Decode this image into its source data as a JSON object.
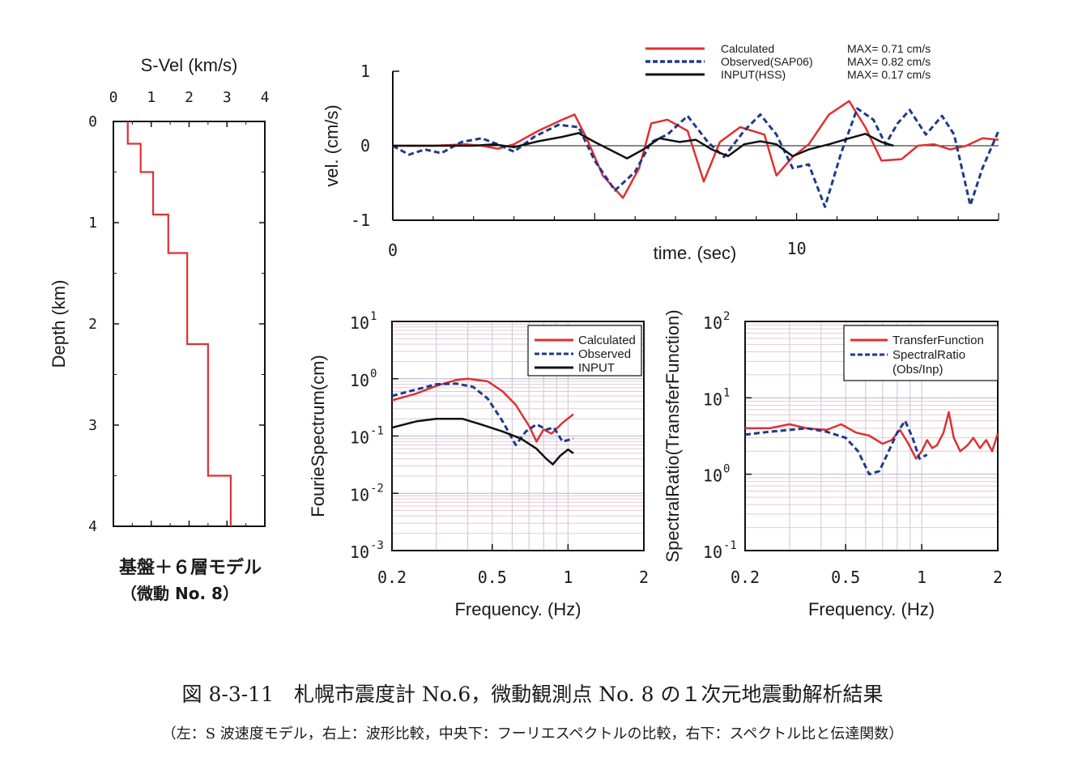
{
  "chart_data": [
    {
      "id": "velocity-profile",
      "type": "line",
      "title": "S-Vel (km/s)",
      "xlabel": "",
      "ylabel": "Depth (km)",
      "xlim": [
        0,
        4
      ],
      "ylim": [
        4,
        0
      ],
      "x_ticks": [
        "0",
        "1",
        "2",
        "3",
        "4"
      ],
      "y_ticks": [
        "0",
        "1",
        "2",
        "3",
        "4"
      ],
      "model_label": "基盤＋６層モデル",
      "model_sublabel": "（微動 No. 8）",
      "series": [
        {
          "color": "#e03030",
          "points": [
            [
              0.38,
              0
            ],
            [
              0.38,
              0.22
            ],
            [
              0.72,
              0.22
            ],
            [
              0.72,
              0.5
            ],
            [
              1.05,
              0.5
            ],
            [
              1.05,
              0.92
            ],
            [
              1.45,
              0.92
            ],
            [
              1.45,
              1.3
            ],
            [
              1.95,
              1.3
            ],
            [
              1.95,
              2.2
            ],
            [
              2.5,
              2.2
            ],
            [
              2.5,
              3.5
            ],
            [
              3.1,
              3.5
            ],
            [
              3.1,
              4.0
            ]
          ]
        }
      ]
    },
    {
      "id": "waveform",
      "type": "line",
      "xlabel": "time. (sec)",
      "ylabel": "vel. (cm/s)",
      "xlim": [
        0,
        15
      ],
      "ylim": [
        -1,
        1
      ],
      "x_ticks": [
        "0",
        "10"
      ],
      "y_ticks": [
        "1",
        "0",
        "-1"
      ],
      "legend": "top-right",
      "series": [
        {
          "name": "Calculated",
          "max_label": "MAX= 0.71 cm/s",
          "color": "#e03030",
          "style": "solid",
          "points": [
            [
              0,
              0
            ],
            [
              1,
              0
            ],
            [
              1.8,
              0.02
            ],
            [
              2.2,
              0
            ],
            [
              2.6,
              -0.04
            ],
            [
              3,
              0.02
            ],
            [
              3.6,
              0.2
            ],
            [
              4.2,
              0.35
            ],
            [
              4.5,
              0.42
            ],
            [
              4.8,
              0.1
            ],
            [
              5.2,
              -0.4
            ],
            [
              5.7,
              -0.7
            ],
            [
              6.1,
              -0.3
            ],
            [
              6.4,
              0.3
            ],
            [
              6.8,
              0.35
            ],
            [
              7.3,
              0.2
            ],
            [
              7.7,
              -0.48
            ],
            [
              8.1,
              0.05
            ],
            [
              8.6,
              0.25
            ],
            [
              9.2,
              0.15
            ],
            [
              9.5,
              -0.4
            ],
            [
              9.9,
              -0.15
            ],
            [
              10.3,
              0.02
            ],
            [
              10.8,
              0.42
            ],
            [
              11.3,
              0.6
            ],
            [
              11.7,
              0.25
            ],
            [
              12.1,
              -0.2
            ],
            [
              12.6,
              -0.18
            ],
            [
              13,
              0
            ],
            [
              13.4,
              0.02
            ],
            [
              13.8,
              -0.05
            ],
            [
              14.2,
              0
            ],
            [
              14.6,
              0.1
            ],
            [
              15,
              0.08
            ]
          ]
        },
        {
          "name": "Observed(SAP06)",
          "max_label": "MAX= 0.82 cm/s",
          "color": "#1e3a8a",
          "style": "dashed",
          "points": [
            [
              0,
              0
            ],
            [
              0.4,
              -0.12
            ],
            [
              0.8,
              -0.05
            ],
            [
              1.2,
              -0.1
            ],
            [
              1.7,
              0.05
            ],
            [
              2.2,
              0.1
            ],
            [
              2.6,
              0.02
            ],
            [
              3,
              -0.08
            ],
            [
              3.5,
              0.12
            ],
            [
              4.1,
              0.28
            ],
            [
              4.6,
              0.25
            ],
            [
              5,
              -0.2
            ],
            [
              5.5,
              -0.6
            ],
            [
              6,
              -0.35
            ],
            [
              6.4,
              0.05
            ],
            [
              6.8,
              0.15
            ],
            [
              7.3,
              0.4
            ],
            [
              7.8,
              0.05
            ],
            [
              8.2,
              -0.15
            ],
            [
              8.7,
              0.2
            ],
            [
              9.1,
              0.42
            ],
            [
              9.5,
              0.15
            ],
            [
              9.9,
              -0.3
            ],
            [
              10.3,
              -0.25
            ],
            [
              10.7,
              -0.82
            ],
            [
              11.1,
              -0.1
            ],
            [
              11.5,
              0.5
            ],
            [
              11.9,
              0.35
            ],
            [
              12.2,
              0.02
            ],
            [
              12.5,
              0.3
            ],
            [
              12.8,
              0.48
            ],
            [
              13.2,
              0.15
            ],
            [
              13.6,
              0.4
            ],
            [
              13.9,
              0.15
            ],
            [
              14.3,
              -0.8
            ],
            [
              14.6,
              -0.3
            ],
            [
              15,
              0.2
            ]
          ]
        },
        {
          "name": "INPUT(HSS)",
          "max_label": "MAX= 0.17 cm/s",
          "color": "#111111",
          "style": "solid",
          "points": [
            [
              0,
              0
            ],
            [
              1,
              0
            ],
            [
              2,
              0
            ],
            [
              2.5,
              0.02
            ],
            [
              3,
              -0.02
            ],
            [
              3.6,
              0.06
            ],
            [
              4.2,
              0.12
            ],
            [
              4.6,
              0.17
            ],
            [
              5,
              0.05
            ],
            [
              5.4,
              -0.06
            ],
            [
              5.8,
              -0.17
            ],
            [
              6.2,
              -0.05
            ],
            [
              6.6,
              0.1
            ],
            [
              7.1,
              0.05
            ],
            [
              7.5,
              0.08
            ],
            [
              7.9,
              -0.05
            ],
            [
              8.3,
              -0.14
            ],
            [
              8.7,
              0.02
            ],
            [
              9.1,
              0.06
            ],
            [
              9.5,
              0.02
            ],
            [
              9.9,
              -0.14
            ],
            [
              10.3,
              -0.05
            ],
            [
              10.8,
              0.02
            ],
            [
              11.3,
              0.1
            ],
            [
              11.7,
              0.16
            ],
            [
              12.1,
              0.05
            ],
            [
              12.4,
              0
            ]
          ]
        }
      ]
    },
    {
      "id": "fourier-spectrum",
      "type": "line",
      "xlabel": "Frequency. (Hz)",
      "ylabel": "FourieSpectrum(cm)",
      "xscale": "log",
      "yscale": "log",
      "xlim": [
        0.2,
        2
      ],
      "ylim": [
        0.001,
        10
      ],
      "x_ticks": [
        "0.2",
        "0.5",
        "1",
        "2"
      ],
      "y_ticks": [
        {
          "base": "10",
          "exp": "1"
        },
        {
          "base": "10",
          "exp": "0"
        },
        {
          "base": "10",
          "exp": "-1"
        },
        {
          "base": "10",
          "exp": "-2"
        },
        {
          "base": "10",
          "exp": "-3"
        }
      ],
      "legend": "top-right",
      "series": [
        {
          "name": "Calculated",
          "color": "#e03030",
          "style": "solid",
          "points": [
            [
              0.2,
              0.42
            ],
            [
              0.25,
              0.55
            ],
            [
              0.3,
              0.75
            ],
            [
              0.36,
              0.95
            ],
            [
              0.4,
              1.0
            ],
            [
              0.48,
              0.9
            ],
            [
              0.55,
              0.6
            ],
            [
              0.62,
              0.35
            ],
            [
              0.7,
              0.15
            ],
            [
              0.75,
              0.08
            ],
            [
              0.8,
              0.13
            ],
            [
              0.86,
              0.11
            ],
            [
              0.95,
              0.17
            ],
            [
              1.05,
              0.24
            ]
          ]
        },
        {
          "name": "Observed",
          "color": "#1e3a8a",
          "style": "dashed",
          "points": [
            [
              0.2,
              0.5
            ],
            [
              0.25,
              0.65
            ],
            [
              0.3,
              0.8
            ],
            [
              0.36,
              0.82
            ],
            [
              0.42,
              0.72
            ],
            [
              0.48,
              0.45
            ],
            [
              0.55,
              0.18
            ],
            [
              0.62,
              0.07
            ],
            [
              0.68,
              0.12
            ],
            [
              0.75,
              0.16
            ],
            [
              0.82,
              0.13
            ],
            [
              0.88,
              0.14
            ],
            [
              0.95,
              0.08
            ],
            [
              1.05,
              0.09
            ]
          ]
        },
        {
          "name": "INPUT",
          "color": "#111111",
          "style": "solid",
          "points": [
            [
              0.2,
              0.14
            ],
            [
              0.25,
              0.18
            ],
            [
              0.3,
              0.2
            ],
            [
              0.38,
              0.2
            ],
            [
              0.45,
              0.16
            ],
            [
              0.55,
              0.12
            ],
            [
              0.65,
              0.09
            ],
            [
              0.75,
              0.06
            ],
            [
              0.82,
              0.04
            ],
            [
              0.87,
              0.032
            ],
            [
              0.93,
              0.045
            ],
            [
              1.0,
              0.058
            ],
            [
              1.05,
              0.05
            ]
          ]
        }
      ]
    },
    {
      "id": "spectral-ratio",
      "type": "line",
      "xlabel": "Frequency. (Hz)",
      "ylabel": "SpectralRatio(TransferFunction)",
      "xscale": "log",
      "yscale": "log",
      "xlim": [
        0.2,
        2
      ],
      "ylim": [
        0.1,
        100
      ],
      "x_ticks": [
        "0.2",
        "0.5",
        "1",
        "2"
      ],
      "y_ticks": [
        {
          "base": "10",
          "exp": "2"
        },
        {
          "base": "10",
          "exp": "1"
        },
        {
          "base": "10",
          "exp": "0"
        },
        {
          "base": "10",
          "exp": "-1"
        }
      ],
      "legend": "top-right",
      "series": [
        {
          "name": "TransferFunction",
          "color": "#e03030",
          "style": "solid",
          "points": [
            [
              0.2,
              4.0
            ],
            [
              0.25,
              4.0
            ],
            [
              0.3,
              4.5
            ],
            [
              0.35,
              4.0
            ],
            [
              0.42,
              3.8
            ],
            [
              0.48,
              4.5
            ],
            [
              0.55,
              3.5
            ],
            [
              0.62,
              3.2
            ],
            [
              0.7,
              2.5
            ],
            [
              0.76,
              2.8
            ],
            [
              0.82,
              3.8
            ],
            [
              0.88,
              2.6
            ],
            [
              0.95,
              1.6
            ],
            [
              1.0,
              2.0
            ],
            [
              1.05,
              2.8
            ],
            [
              1.1,
              2.2
            ],
            [
              1.15,
              2.4
            ],
            [
              1.22,
              3.5
            ],
            [
              1.28,
              6.5
            ],
            [
              1.34,
              3.0
            ],
            [
              1.42,
              2.0
            ],
            [
              1.52,
              2.4
            ],
            [
              1.6,
              3.0
            ],
            [
              1.7,
              2.2
            ],
            [
              1.8,
              2.8
            ],
            [
              1.9,
              2.0
            ],
            [
              2.0,
              3.4
            ]
          ]
        },
        {
          "name": "SpectralRatio",
          "name_line2": "(Obs/Inp)",
          "color": "#1e3a8a",
          "style": "dashed",
          "points": [
            [
              0.2,
              3.3
            ],
            [
              0.25,
              3.6
            ],
            [
              0.3,
              3.8
            ],
            [
              0.35,
              4.0
            ],
            [
              0.42,
              3.6
            ],
            [
              0.5,
              3.0
            ],
            [
              0.56,
              2.0
            ],
            [
              0.62,
              1.0
            ],
            [
              0.68,
              1.1
            ],
            [
              0.74,
              2.0
            ],
            [
              0.8,
              3.5
            ],
            [
              0.86,
              5.0
            ],
            [
              0.92,
              3.0
            ],
            [
              0.98,
              1.6
            ],
            [
              1.05,
              1.8
            ]
          ]
        }
      ]
    }
  ],
  "caption": {
    "main": "図 8-3-11　札幌市震度計 No.6，微動観測点 No. 8 の１次元地震動解析結果",
    "sub": "（左：S 波速度モデル，右上：波形比較，中央下：フーリエスペクトルの比較，右下：スペクトル比と伝達関数）"
  }
}
